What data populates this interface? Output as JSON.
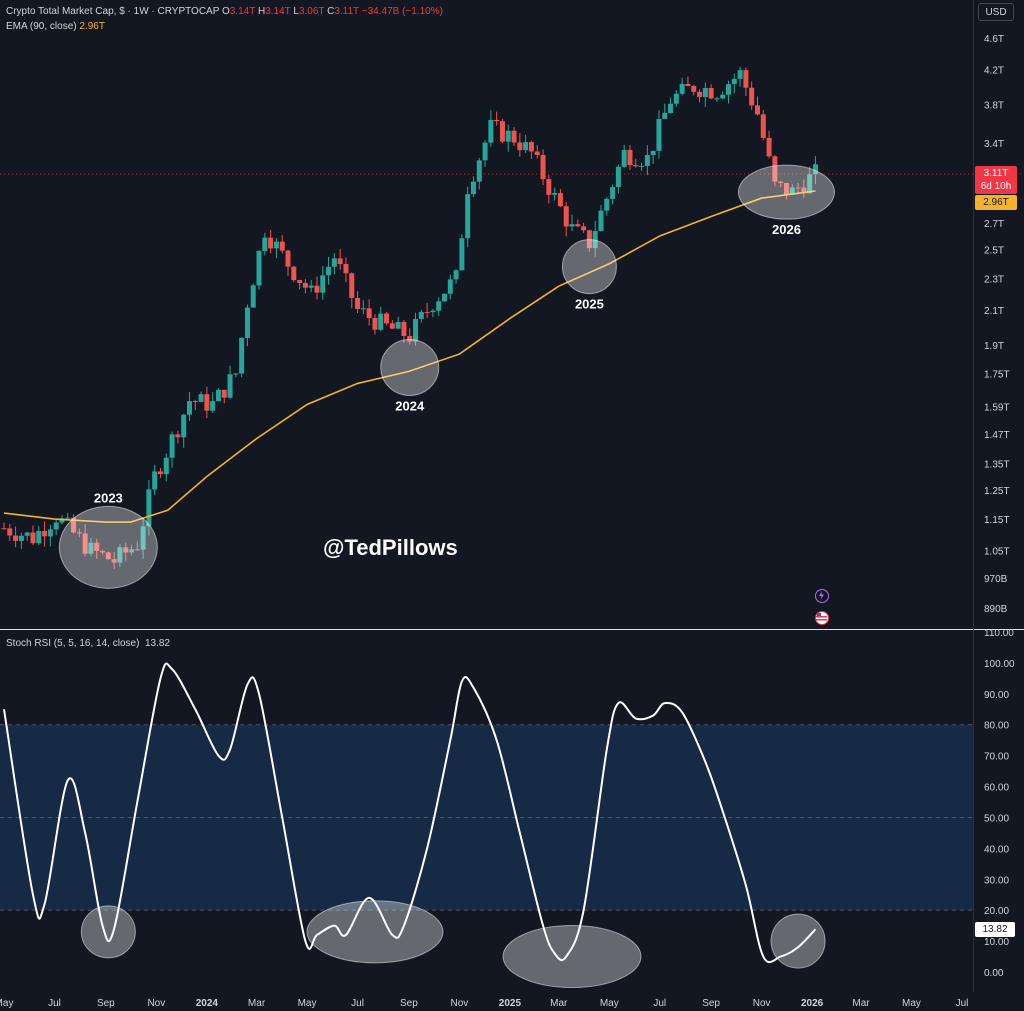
{
  "header": {
    "symbol": "Crypto Total Market Cap, $ · 1W · CRYPTOCAP",
    "o_label": "O",
    "o": "3.14T",
    "h_label": "H",
    "h": "3.14T",
    "l_label": "L",
    "l": "3.06T",
    "c_label": "C",
    "c": "3.11T",
    "change": "−34.47B (−1.10%)",
    "ema_label": "EMA (90, close)",
    "ema_value": "2.96T"
  },
  "currency": "USD",
  "price_tag": {
    "value": "3.11T",
    "countdown": "6d 10h"
  },
  "ema_tag": "2.96T",
  "watermark": "@TedPillows",
  "rsi_header": {
    "label": "Stoch RSI (5, 5, 16, 14, close)",
    "value": "13.82"
  },
  "rsi_tag": "13.82",
  "colors": {
    "up": "#26a69a",
    "down": "#ef5350",
    "ema": "#f5b32a",
    "rsi_line": "#ffffff",
    "rsi_band": "#162a45",
    "background": "#131722"
  },
  "chart_data": [
    {
      "type": "candlestick",
      "title": "Crypto Total Market Cap, $ · 1W · CRYPTOCAP",
      "scale": "log",
      "ylim": [
        0.85,
        4.75
      ],
      "price_ticks": [
        "4.6T",
        "4.2T",
        "3.8T",
        "3.4T",
        "2.7T",
        "2.5T",
        "2.3T",
        "2.1T",
        "1.9T",
        "1.75T",
        "1.59T",
        "1.47T",
        "1.35T",
        "1.25T",
        "1.15T",
        "1.05T",
        "970B",
        "890B"
      ],
      "price_tick_values": [
        4.6,
        4.2,
        3.8,
        3.4,
        2.7,
        2.5,
        2.3,
        2.1,
        1.9,
        1.75,
        1.59,
        1.47,
        1.35,
        1.25,
        1.15,
        1.05,
        0.97,
        0.89
      ],
      "x_ticks": [
        "May",
        "Jul",
        "Sep",
        "Nov",
        "2024",
        "Mar",
        "May",
        "Jul",
        "Sep",
        "Nov",
        "2025",
        "Mar",
        "May",
        "Jul",
        "Sep",
        "Nov",
        "2026",
        "Mar",
        "May",
        "Jul"
      ],
      "x_tick_dates": [
        "2023-05",
        "2023-07",
        "2023-09",
        "2023-11",
        "2024-01",
        "2024-03",
        "2024-05",
        "2024-07",
        "2024-09",
        "2024-11",
        "2025-01",
        "2025-03",
        "2025-05",
        "2025-07",
        "2025-09",
        "2025-11",
        "2026-01",
        "2026-03",
        "2026-05",
        "2026-07"
      ],
      "close_anchors": [
        [
          "2023-05-01",
          1.12
        ],
        [
          "2023-06-05",
          1.09
        ],
        [
          "2023-07-03",
          1.16
        ],
        [
          "2023-08-14",
          1.05
        ],
        [
          "2023-09-11",
          1.02
        ],
        [
          "2023-10-09",
          1.07
        ],
        [
          "2023-10-30",
          1.3
        ],
        [
          "2023-11-27",
          1.5
        ],
        [
          "2023-12-11",
          1.62
        ],
        [
          "2024-01-08",
          1.6
        ],
        [
          "2024-02-05",
          1.75
        ],
        [
          "2024-02-19",
          2.15
        ],
        [
          "2024-03-11",
          2.65
        ],
        [
          "2024-04-08",
          2.4
        ],
        [
          "2024-05-06",
          2.2
        ],
        [
          "2024-06-03",
          2.45
        ],
        [
          "2024-07-01",
          2.1
        ],
        [
          "2024-08-05",
          2.0
        ],
        [
          "2024-09-02",
          1.95
        ],
        [
          "2024-09-30",
          2.15
        ],
        [
          "2024-10-28",
          2.3
        ],
        [
          "2024-11-11",
          3.0
        ],
        [
          "2024-12-09",
          3.55
        ],
        [
          "2025-01-06",
          3.45
        ],
        [
          "2025-01-27",
          3.3
        ],
        [
          "2025-02-24",
          2.9
        ],
        [
          "2025-03-17",
          2.65
        ],
        [
          "2025-04-07",
          2.55
        ],
        [
          "2025-04-28",
          2.9
        ],
        [
          "2025-05-19",
          3.3
        ],
        [
          "2025-06-16",
          3.25
        ],
        [
          "2025-07-14",
          3.85
        ],
        [
          "2025-08-11",
          4.0
        ],
        [
          "2025-09-08",
          3.95
        ],
        [
          "2025-10-06",
          4.15
        ],
        [
          "2025-10-27",
          3.7
        ],
        [
          "2025-11-17",
          3.0
        ],
        [
          "2025-12-08",
          2.95
        ],
        [
          "2026-01-05",
          3.11
        ]
      ],
      "series": [
        {
          "name": "EMA (90, close)",
          "points": [
            [
              "2023-05-01",
              1.17
            ],
            [
              "2023-07-01",
              1.15
            ],
            [
              "2023-09-01",
              1.14
            ],
            [
              "2023-10-01",
              1.14
            ],
            [
              "2023-11-15",
              1.18
            ],
            [
              "2024-01-01",
              1.3
            ],
            [
              "2024-03-01",
              1.45
            ],
            [
              "2024-05-01",
              1.6
            ],
            [
              "2024-07-01",
              1.7
            ],
            [
              "2024-09-01",
              1.76
            ],
            [
              "2024-11-01",
              1.85
            ],
            [
              "2025-01-01",
              2.05
            ],
            [
              "2025-03-01",
              2.25
            ],
            [
              "2025-05-01",
              2.4
            ],
            [
              "2025-07-01",
              2.6
            ],
            [
              "2025-09-01",
              2.75
            ],
            [
              "2025-11-01",
              2.9
            ],
            [
              "2026-01-05",
              2.96
            ]
          ]
        }
      ],
      "annotations": [
        "2023",
        "2024",
        "2025",
        "2026"
      ]
    },
    {
      "type": "line",
      "title": "Stoch RSI (5, 5, 16, 14, close)",
      "ylim": [
        0,
        110
      ],
      "y_ticks": [
        "110.00",
        "100.00",
        "90.00",
        "80.00",
        "70.00",
        "60.00",
        "50.00",
        "40.00",
        "30.00",
        "20.00",
        "10.00",
        "0.00"
      ],
      "y_tick_values": [
        110,
        100,
        90,
        80,
        70,
        60,
        50,
        40,
        30,
        20,
        10,
        0
      ],
      "band": [
        20,
        80
      ],
      "series": [
        {
          "name": "Stoch RSI",
          "points": [
            [
              "2023-05-01",
              85
            ],
            [
              "2023-06-05",
              25
            ],
            [
              "2023-06-19",
              22
            ],
            [
              "2023-07-17",
              62
            ],
            [
              "2023-08-07",
              45
            ],
            [
              "2023-08-28",
              15
            ],
            [
              "2023-09-11",
              14
            ],
            [
              "2023-10-09",
              55
            ],
            [
              "2023-11-06",
              95
            ],
            [
              "2023-11-20",
              98
            ],
            [
              "2023-12-18",
              85
            ],
            [
              "2024-01-15",
              70
            ],
            [
              "2024-01-29",
              72
            ],
            [
              "2024-02-19",
              93
            ],
            [
              "2024-03-04",
              90
            ],
            [
              "2024-04-01",
              50
            ],
            [
              "2024-04-29",
              10
            ],
            [
              "2024-05-13",
              12
            ],
            [
              "2024-06-03",
              15
            ],
            [
              "2024-06-17",
              12
            ],
            [
              "2024-07-15",
              24
            ],
            [
              "2024-08-12",
              12
            ],
            [
              "2024-08-26",
              15
            ],
            [
              "2024-09-23",
              40
            ],
            [
              "2024-10-21",
              75
            ],
            [
              "2024-11-04",
              94
            ],
            [
              "2024-11-18",
              92
            ],
            [
              "2024-12-16",
              75
            ],
            [
              "2025-01-13",
              45
            ],
            [
              "2025-02-10",
              15
            ],
            [
              "2025-02-24",
              6
            ],
            [
              "2025-03-10",
              5
            ],
            [
              "2025-03-31",
              20
            ],
            [
              "2025-04-28",
              72
            ],
            [
              "2025-05-12",
              87
            ],
            [
              "2025-06-02",
              82
            ],
            [
              "2025-06-23",
              83
            ],
            [
              "2025-07-07",
              87
            ],
            [
              "2025-07-28",
              84
            ],
            [
              "2025-08-25",
              68
            ],
            [
              "2025-09-15",
              52
            ],
            [
              "2025-10-13",
              28
            ],
            [
              "2025-11-03",
              5
            ],
            [
              "2025-11-24",
              5
            ],
            [
              "2025-12-15",
              8
            ],
            [
              "2026-01-05",
              13.82
            ]
          ]
        }
      ]
    }
  ]
}
